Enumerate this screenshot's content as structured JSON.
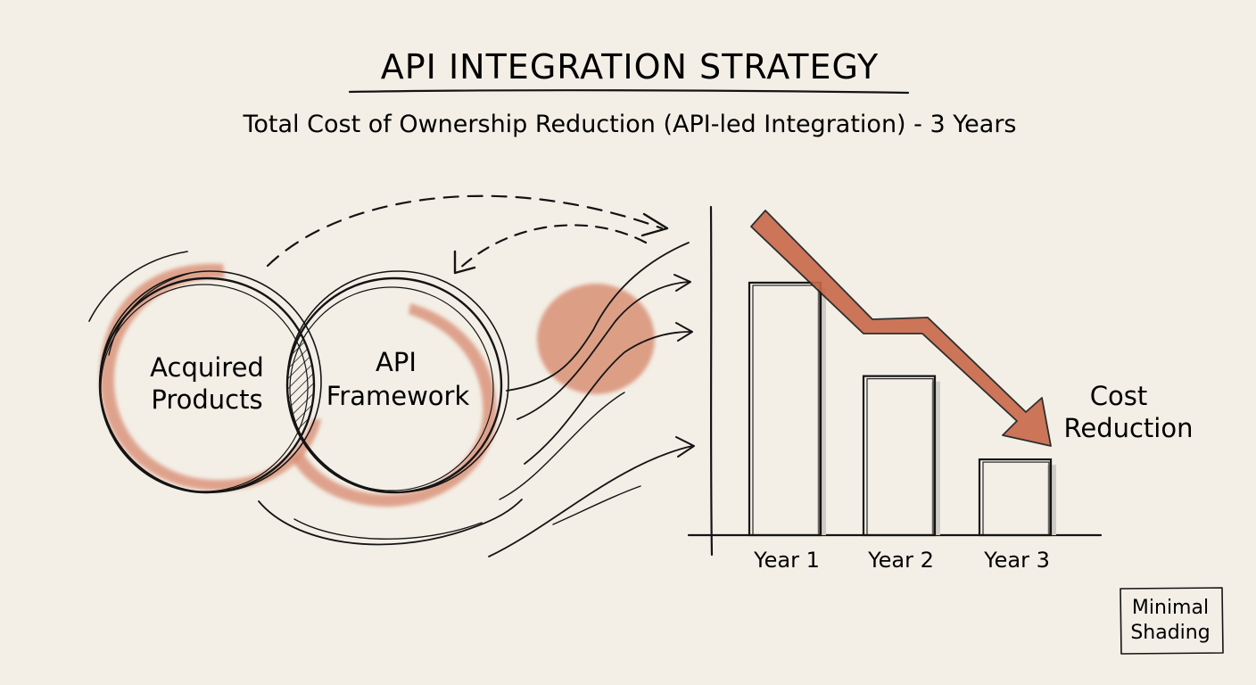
{
  "title": "API INTEGRATION STRATEGY",
  "subtitle": "Total Cost of Ownership Reduction (API-led Integration) - 3 Years",
  "venn": {
    "left_circle": [
      "Acquired",
      "Products"
    ],
    "right_circle": [
      "API",
      "Framework"
    ]
  },
  "chart_data": {
    "type": "bar",
    "categories": [
      "Year 1",
      "Year 2",
      "Year 3"
    ],
    "values": [
      100,
      63,
      30
    ],
    "ylim": [
      0,
      130
    ],
    "grid": false,
    "annotation": [
      "Cost",
      "Reduction"
    ]
  },
  "note": [
    "Minimal",
    "Shading"
  ],
  "colors": {
    "background": "#f3efe6",
    "ink": "#141414",
    "accent": "#c8684a",
    "accent_wash": "#d98f76",
    "bar_shadow": "#cfccc6"
  }
}
